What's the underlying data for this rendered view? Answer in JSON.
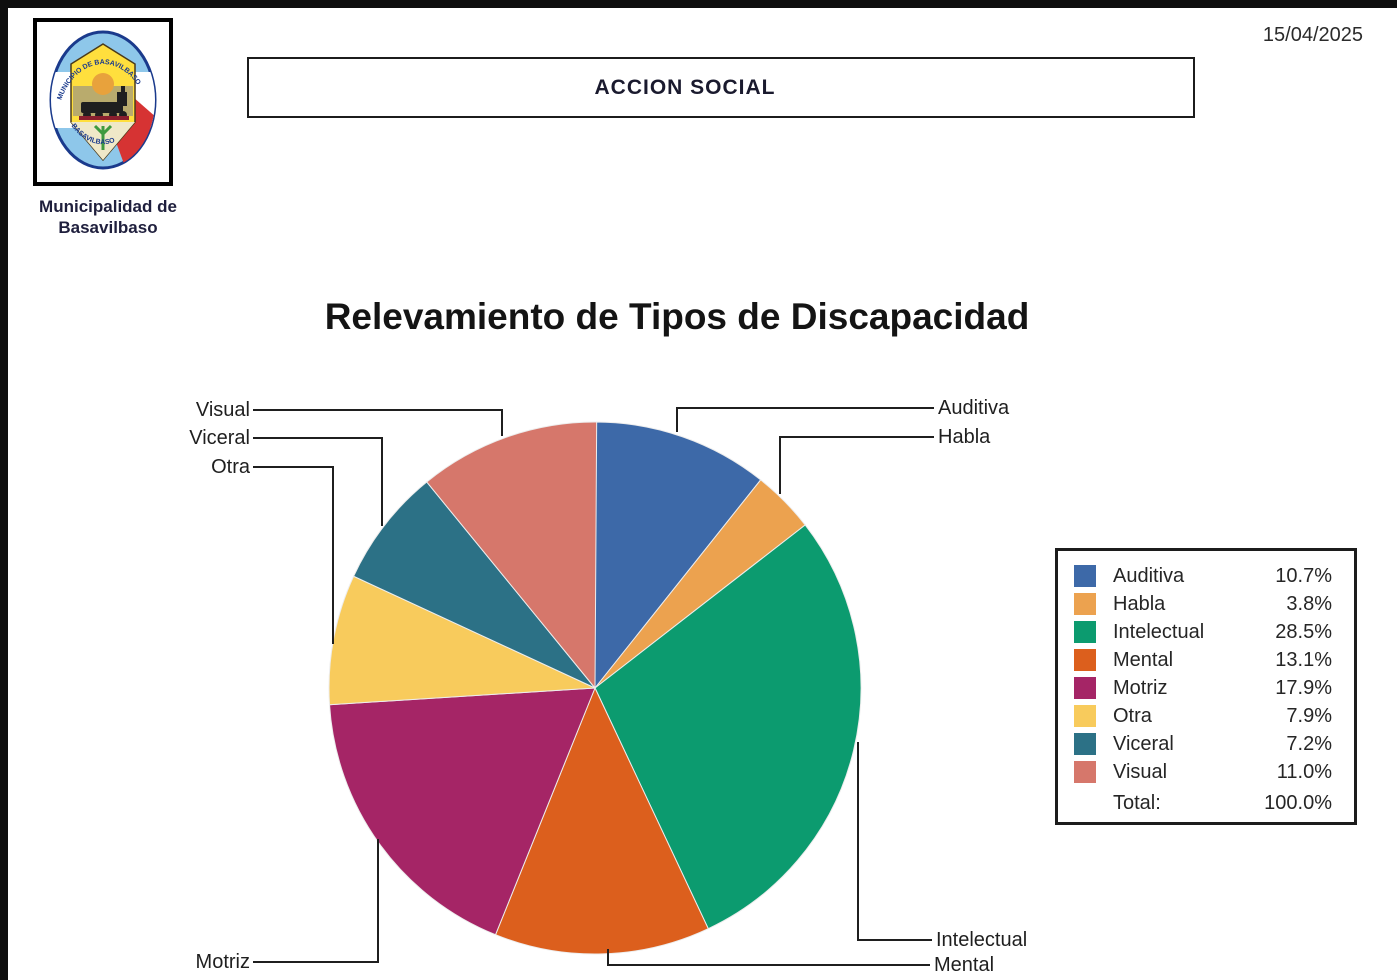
{
  "page": {
    "date": "15/04/2025",
    "header_banner": "ACCION SOCIAL",
    "logo_caption_line1": "Municipalidad de",
    "logo_caption_line2": "Basavilbaso"
  },
  "chart_data": {
    "type": "pie",
    "title": "Relevamiento de Tipos de Discapacidad",
    "direction": "clockwise",
    "start_angle_deg": 0,
    "legend_position": "right",
    "labels_style": "callouts-with-leader-lines",
    "slices": [
      {
        "label": "Auditiva",
        "value_pct": 10.7,
        "display": "10.7%",
        "color": "#3D69A8"
      },
      {
        "label": "Habla",
        "value_pct": 3.8,
        "display": "3.8%",
        "color": "#ECA24F"
      },
      {
        "label": "Intelectual",
        "value_pct": 28.5,
        "display": "28.5%",
        "color": "#0C9B6F"
      },
      {
        "label": "Mental",
        "value_pct": 13.1,
        "display": "13.1%",
        "color": "#DC5F1D"
      },
      {
        "label": "Motriz",
        "value_pct": 17.9,
        "display": "17.9%",
        "color": "#A52566"
      },
      {
        "label": "Otra",
        "value_pct": 7.9,
        "display": "7.9%",
        "color": "#F8CB5C"
      },
      {
        "label": "Viceral",
        "value_pct": 7.2,
        "display": "7.2%",
        "color": "#2C7186"
      },
      {
        "label": "Visual",
        "value_pct": 11.0,
        "display": "11.0%",
        "color": "#D6776B"
      }
    ],
    "total_label": "Total:",
    "total_value": "100.0%"
  }
}
